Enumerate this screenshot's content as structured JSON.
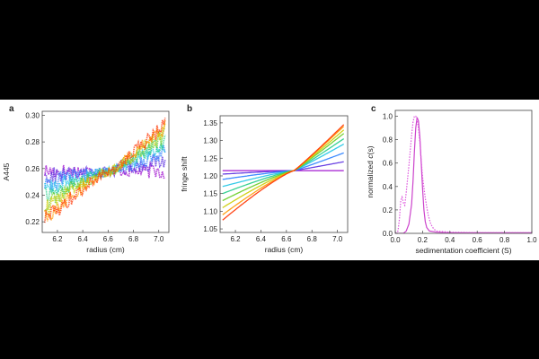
{
  "chart_data": [
    {
      "panel_label": "a",
      "type": "scatter",
      "xlabel": "radius (cm)",
      "ylabel": "A445",
      "xlim": [
        6.08,
        7.08
      ],
      "ylim": [
        0.212,
        0.303
      ],
      "xticks": [
        "6.2",
        "6.4",
        "6.6",
        "6.8",
        "7.0"
      ],
      "yticks": [
        "0.22",
        "0.24",
        "0.26",
        "0.28",
        "0.30"
      ],
      "xtick_values": [
        6.2,
        6.4,
        6.6,
        6.8,
        7.0
      ],
      "ytick_values": [
        0.22,
        0.24,
        0.26,
        0.28,
        0.3
      ],
      "x_range": [
        6.1,
        7.05
      ],
      "hinge_point": [
        6.62,
        0.258
      ],
      "scan_endpoints_left": [
        0.258,
        0.254,
        0.249,
        0.244,
        0.239,
        0.234,
        0.229,
        0.224,
        0.221
      ],
      "scan_endpoints_right": [
        0.258,
        0.266,
        0.272,
        0.277,
        0.281,
        0.285,
        0.288,
        0.291,
        0.293
      ],
      "series_colors": [
        "#9900cc",
        "#5a2ee0",
        "#2a7fff",
        "#1fc4e6",
        "#22cc88",
        "#66cc22",
        "#cccc00",
        "#ff9900",
        "#ff3300"
      ],
      "noise": "high"
    },
    {
      "panel_label": "b",
      "type": "line",
      "xlabel": "radius (cm)",
      "ylabel": "fringe shift",
      "xlim": [
        6.08,
        7.08
      ],
      "ylim": [
        1.04,
        1.37
      ],
      "xticks": [
        "6.2",
        "6.4",
        "6.6",
        "6.8",
        "7.0"
      ],
      "yticks": [
        "1.05",
        "1.10",
        "1.15",
        "1.20",
        "1.25",
        "1.30",
        "1.35"
      ],
      "xtick_values": [
        6.2,
        6.4,
        6.6,
        6.8,
        7.0
      ],
      "ytick_values": [
        1.05,
        1.1,
        1.15,
        1.2,
        1.25,
        1.3,
        1.35
      ],
      "x_range": [
        6.1,
        7.05
      ],
      "hinge_point": [
        6.66,
        1.215
      ],
      "scan_endpoints_left": [
        1.215,
        1.205,
        1.19,
        1.17,
        1.15,
        1.13,
        1.11,
        1.09,
        1.075
      ],
      "scan_endpoints_right": [
        1.215,
        1.24,
        1.265,
        1.29,
        1.305,
        1.32,
        1.33,
        1.34,
        1.345
      ],
      "series_colors": [
        "#9900cc",
        "#5a2ee0",
        "#2a7fff",
        "#1fc4e6",
        "#22cc88",
        "#66cc22",
        "#cccc00",
        "#ff9900",
        "#ff3300"
      ],
      "noise": "low"
    },
    {
      "panel_label": "c",
      "type": "line",
      "xlabel": "sedimentation coefficient (S)",
      "ylabel_prefix": "normalized ",
      "ylabel_italic": "c",
      "ylabel_suffix": "(s)",
      "xlim": [
        0,
        1.0
      ],
      "ylim": [
        0,
        1.05
      ],
      "xticks": [
        "0.0",
        "0.2",
        "0.4",
        "0.6",
        "0.8",
        "1.0"
      ],
      "yticks": [
        "0.0",
        "0.2",
        "0.4",
        "0.6",
        "0.8",
        "1.0"
      ],
      "xtick_values": [
        0,
        0.2,
        0.4,
        0.6,
        0.8,
        1.0
      ],
      "ytick_values": [
        0,
        0.2,
        0.4,
        0.6,
        0.8,
        1.0
      ],
      "series": [
        {
          "style": "solid",
          "color": "#cc44cc",
          "x": [
            0.0,
            0.06,
            0.08,
            0.1,
            0.12,
            0.13,
            0.14,
            0.15,
            0.16,
            0.17,
            0.18,
            0.19,
            0.2,
            0.21,
            0.22,
            0.23,
            0.25,
            0.3,
            0.4,
            0.6,
            0.8,
            1.0
          ],
          "y": [
            0.0,
            0.0,
            0.02,
            0.08,
            0.25,
            0.45,
            0.7,
            0.9,
            0.99,
            0.96,
            0.82,
            0.6,
            0.38,
            0.2,
            0.1,
            0.05,
            0.02,
            0.01,
            0.005,
            0.005,
            0.005,
            0.005
          ]
        },
        {
          "style": "dotted",
          "color": "#dd55dd",
          "x": [
            0.0,
            0.02,
            0.03,
            0.04,
            0.05,
            0.06,
            0.07,
            0.08,
            0.1,
            0.12,
            0.13,
            0.14,
            0.15,
            0.16,
            0.17,
            0.18,
            0.19,
            0.2,
            0.22,
            0.24,
            0.26,
            0.28,
            0.3,
            0.4,
            0.6,
            0.8,
            1.0
          ],
          "y": [
            0.0,
            0.02,
            0.12,
            0.28,
            0.31,
            0.26,
            0.24,
            0.35,
            0.58,
            0.84,
            0.95,
            1.0,
            1.0,
            0.97,
            0.9,
            0.78,
            0.62,
            0.48,
            0.3,
            0.16,
            0.08,
            0.04,
            0.02,
            0.01,
            0.005,
            0.005,
            0.005
          ]
        }
      ]
    }
  ]
}
